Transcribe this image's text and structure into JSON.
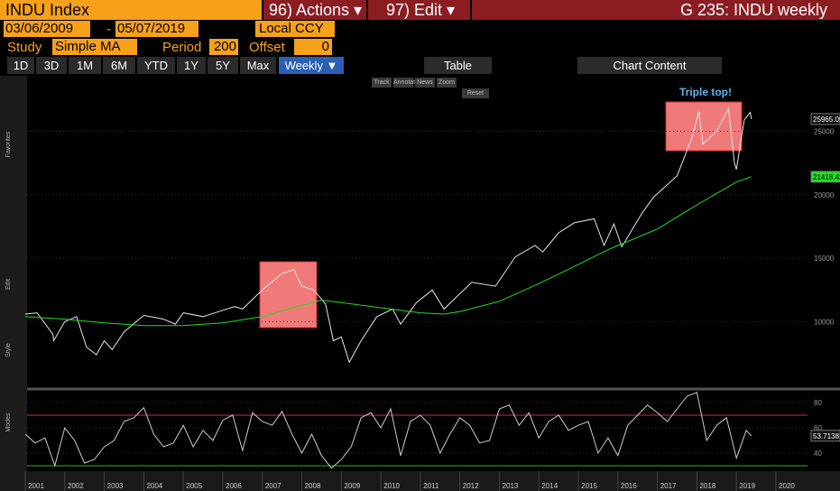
{
  "header": {
    "security": "INDU Index",
    "actions": "96) Actions ▾",
    "edit": "97) Edit ▾",
    "title": "G 235: INDU weekly"
  },
  "range": {
    "start": "03/06/2009",
    "sep": "-",
    "end": "05/07/2019",
    "currency": "Local CCY"
  },
  "study": {
    "label": "Study",
    "name": "Simple MA",
    "period_label": "Period",
    "period": "200",
    "offset_label": "Offset",
    "offset": "0"
  },
  "toolbar": {
    "periods": [
      "1D",
      "3D",
      "1M",
      "6M",
      "YTD",
      "1Y",
      "5Y",
      "Max"
    ],
    "frequency": "Weekly ▼",
    "table": "Table",
    "content": "Chart Content"
  },
  "tools": [
    "Track",
    "Annotate",
    "News",
    "Zoom",
    "Reset"
  ],
  "sidebar": [
    "Favorites",
    "Edit",
    "Style",
    "Modes"
  ],
  "chart_data": [
    {
      "type": "line",
      "annotation": "Triple top!",
      "xlim": [
        2001,
        2020.8
      ],
      "xticks": [
        2001,
        2002,
        2003,
        2004,
        2005,
        2006,
        2007,
        2008,
        2009,
        2010,
        2011,
        2012,
        2013,
        2014,
        2015,
        2016,
        2017,
        2018,
        2019,
        2020
      ],
      "ylim": [
        4840,
        29300
      ],
      "yticks": [
        10000,
        15000,
        20000,
        25000
      ],
      "series": [
        {
          "name": "INDU",
          "color": "#e6e6e6",
          "last_label": "25965.09",
          "x": [
            2001.0,
            2001.3,
            2001.7,
            2001.72,
            2002.0,
            2002.3,
            2002.55,
            2002.8,
            2003.0,
            2003.2,
            2003.5,
            2004.0,
            2004.5,
            2004.8,
            2005.0,
            2005.5,
            2005.9,
            2006.3,
            2006.5,
            2007.0,
            2007.5,
            2007.8,
            2008.0,
            2008.3,
            2008.6,
            2008.8,
            2009.0,
            2009.2,
            2009.5,
            2009.9,
            2010.3,
            2010.5,
            2010.9,
            2011.3,
            2011.6,
            2011.8,
            2012.3,
            2012.9,
            2013.4,
            2013.9,
            2014.1,
            2014.5,
            2014.9,
            2015.4,
            2015.65,
            2015.9,
            2016.1,
            2016.6,
            2016.9,
            2017.5,
            2017.9,
            2018.05,
            2018.15,
            2018.5,
            2018.8,
            2018.95,
            2019.0,
            2019.2,
            2019.35,
            2019.38
          ],
          "values": [
            10600,
            10700,
            9000,
            8500,
            10000,
            10400,
            8000,
            7400,
            8500,
            7800,
            9200,
            10500,
            10200,
            9800,
            10700,
            10400,
            10800,
            11200,
            11000,
            12500,
            13800,
            14100,
            12800,
            12500,
            11400,
            8500,
            8800,
            6800,
            8500,
            10400,
            11000,
            9800,
            11500,
            12500,
            11000,
            11600,
            13100,
            12800,
            15100,
            16000,
            15500,
            17000,
            17800,
            18100,
            16000,
            17700,
            15900,
            18500,
            19800,
            21500,
            24700,
            26600,
            24000,
            25000,
            26800,
            22500,
            22000,
            25900,
            26500,
            25965
          ]
        },
        {
          "name": "Simple MA",
          "color": "#22dd22",
          "last_label": "21418.42",
          "x": [
            2001.0,
            2002.0,
            2003.0,
            2004.0,
            2005.0,
            2006.0,
            2007.0,
            2008.0,
            2008.5,
            2009.0,
            2010.0,
            2011.0,
            2011.6,
            2012.0,
            2013.0,
            2014.0,
            2015.0,
            2015.7,
            2016.0,
            2017.0,
            2018.0,
            2019.0,
            2019.38
          ],
          "values": [
            10400,
            10200,
            9900,
            9700,
            9700,
            9900,
            10400,
            11300,
            11700,
            11500,
            11100,
            10700,
            10600,
            10800,
            11600,
            13000,
            14500,
            15600,
            16000,
            17300,
            19200,
            21000,
            21418
          ]
        }
      ]
    },
    {
      "type": "line",
      "ylim": [
        27.1,
        89.3
      ],
      "yticks": [
        40,
        60,
        80
      ],
      "levels": [
        {
          "value": 70,
          "color": "#c83232"
        },
        {
          "value": 30,
          "color": "#22bb22"
        }
      ],
      "series": [
        {
          "name": "RSI",
          "color": "#cccccc",
          "last_label": "53.7138",
          "x": [
            2001.0,
            2001.25,
            2001.5,
            2001.75,
            2002.0,
            2002.25,
            2002.5,
            2002.75,
            2003.0,
            2003.25,
            2003.5,
            2003.75,
            2004.0,
            2004.25,
            2004.5,
            2004.75,
            2005.0,
            2005.25,
            2005.5,
            2005.75,
            2006.0,
            2006.25,
            2006.5,
            2006.75,
            2007.0,
            2007.25,
            2007.5,
            2007.75,
            2008.0,
            2008.25,
            2008.5,
            2008.75,
            2009.0,
            2009.25,
            2009.5,
            2009.75,
            2010.0,
            2010.25,
            2010.5,
            2010.75,
            2011.0,
            2011.25,
            2011.5,
            2011.75,
            2012.0,
            2012.25,
            2012.5,
            2012.75,
            2013.0,
            2013.25,
            2013.5,
            2013.75,
            2014.0,
            2014.25,
            2014.5,
            2014.75,
            2015.0,
            2015.25,
            2015.5,
            2015.75,
            2016.0,
            2016.25,
            2016.5,
            2016.75,
            2017.0,
            2017.25,
            2017.5,
            2017.75,
            2018.0,
            2018.25,
            2018.5,
            2018.75,
            2019.0,
            2019.25,
            2019.38
          ],
          "values": [
            55,
            48,
            52,
            30,
            60,
            50,
            32,
            35,
            45,
            50,
            65,
            68,
            76,
            55,
            45,
            48,
            62,
            45,
            58,
            50,
            66,
            70,
            42,
            72,
            65,
            62,
            73,
            55,
            40,
            55,
            38,
            28,
            35,
            45,
            68,
            72,
            60,
            75,
            38,
            65,
            70,
            62,
            40,
            55,
            68,
            62,
            48,
            50,
            75,
            78,
            62,
            72,
            52,
            65,
            70,
            58,
            62,
            65,
            40,
            52,
            38,
            62,
            70,
            78,
            72,
            65,
            75,
            85,
            88,
            50,
            62,
            68,
            36,
            58,
            53.7
          ]
        }
      ]
    }
  ]
}
